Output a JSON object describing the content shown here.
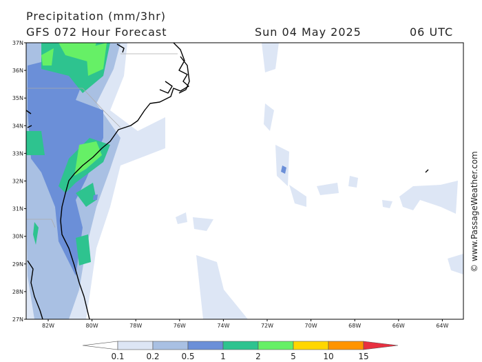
{
  "header": {
    "title": "Precipitation (mm/3hr)",
    "model": "GFS 072 Hour Forecast",
    "date": "Sun 04 May 2025",
    "time": "06 UTC"
  },
  "watermark": "© www.PassageWeather.com",
  "latitudes": [
    "37N",
    "36N",
    "35N",
    "34N",
    "33N",
    "32N",
    "31N",
    "30N",
    "29N",
    "28N",
    "27N"
  ],
  "longitudes": [
    "82W",
    "80W",
    "78W",
    "76W",
    "74W",
    "72W",
    "70W",
    "68W",
    "66W",
    "64W"
  ],
  "legend": {
    "labels": [
      "0.1",
      "0.2",
      "0.5",
      "1",
      "2",
      "5",
      "10",
      "15"
    ],
    "colors": [
      "#ffffff",
      "#dde6f5",
      "#a9c0e3",
      "#6b8fd8",
      "#2ec38f",
      "#66f066",
      "#ffd700",
      "#ff9400",
      "#e83040"
    ]
  }
}
